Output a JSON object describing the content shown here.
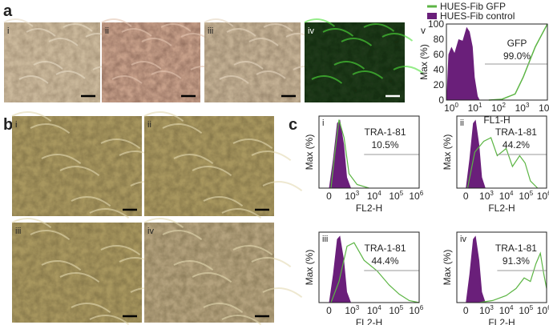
{
  "panel_a": {
    "label": "a",
    "images": [
      "i",
      "ii",
      "iii",
      "iv"
    ],
    "histogram": {
      "roman": "v",
      "legend": [
        "HUES-Fib GFP",
        "HUES-Fib control"
      ],
      "ylabel": "Max (%)",
      "yticks": [
        "0",
        "20",
        "40",
        "60",
        "80",
        "100"
      ],
      "xlabel": "FL1-H",
      "xticks": [
        {
          "base": "10",
          "exp": "0"
        },
        {
          "base": "10",
          "exp": "1"
        },
        {
          "base": "10",
          "exp": "2"
        },
        {
          "base": "10",
          "exp": "3"
        },
        {
          "base": "10",
          "exp": "4"
        }
      ],
      "gate_name": "GFP",
      "gate_value": "99.0%"
    }
  },
  "panel_b": {
    "label": "b",
    "images": [
      "i",
      "ii",
      "iii",
      "iv"
    ]
  },
  "panel_c": {
    "label": "c",
    "ylabel": "Max (%)",
    "xlabel": "FL2-H",
    "xticks": [
      "0",
      {
        "base": "10",
        "exp": "3"
      },
      {
        "base": "10",
        "exp": "4"
      },
      {
        "base": "10",
        "exp": "5"
      },
      {
        "base": "10",
        "exp": "6"
      }
    ],
    "histograms": [
      {
        "roman": "i",
        "marker": "TRA-1-81",
        "percent": "10.5%"
      },
      {
        "roman": "ii",
        "marker": "TRA-1-81",
        "percent": "44.2%"
      },
      {
        "roman": "iii",
        "marker": "TRA-1-81",
        "percent": "44.4%"
      },
      {
        "roman": "iv",
        "marker": "TRA-1-81",
        "percent": "91.3%"
      }
    ]
  }
}
